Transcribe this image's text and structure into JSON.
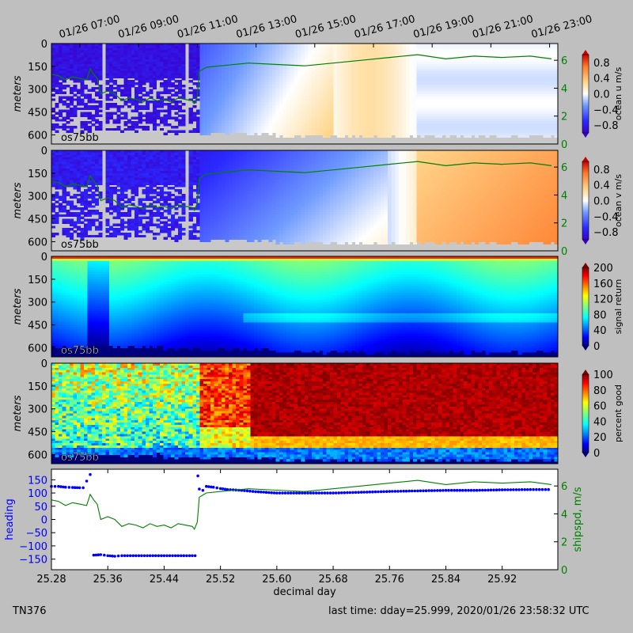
{
  "cruise": "TN376",
  "last_time": "last time: dday=25.999,  2020/01/26 23:58:32 UTC",
  "instrument": "os75bb",
  "chart_data": {
    "type": "heatmap",
    "top_time_ticks": [
      "01/26 07:00",
      "01/26 09:00",
      "01/26 11:00",
      "01/26 13:00",
      "01/26 15:00",
      "01/26 17:00",
      "01/26 19:00",
      "01/26 21:00",
      "01/26 23:00"
    ],
    "panels": [
      {
        "id": "u",
        "ylabel": "meters",
        "yticks": [
          "0",
          "150",
          "300",
          "450",
          "600"
        ],
        "colorbar_label": "ocean u m/s",
        "colorbar_ticks": [
          "0.8",
          "0.4",
          "0.0",
          "−0.4",
          "−0.8"
        ],
        "right_ticks": [
          "6",
          "4",
          "2",
          "0"
        ],
        "clim": [
          -1.0,
          1.0
        ]
      },
      {
        "id": "v",
        "ylabel": "meters",
        "yticks": [
          "0",
          "150",
          "300",
          "450",
          "600"
        ],
        "colorbar_label": "ocean v m/s",
        "colorbar_ticks": [
          "0.8",
          "0.4",
          "0.0",
          "−0.4",
          "−0.8"
        ],
        "right_ticks": [
          "6",
          "4",
          "2",
          "0"
        ],
        "clim": [
          -1.0,
          1.0
        ]
      },
      {
        "id": "amp",
        "ylabel": "meters",
        "yticks": [
          "0",
          "150",
          "300",
          "450",
          "600"
        ],
        "colorbar_label": "signal return",
        "colorbar_ticks": [
          "200",
          "160",
          "120",
          "80",
          "40",
          "0"
        ],
        "clim": [
          0,
          200
        ]
      },
      {
        "id": "pg",
        "ylabel": "meters",
        "yticks": [
          "0",
          "150",
          "300",
          "450",
          "600"
        ],
        "colorbar_label": "percent good",
        "colorbar_ticks": [
          "100",
          "80",
          "60",
          "40",
          "20",
          "0"
        ],
        "clim": [
          0,
          100
        ]
      }
    ],
    "bottom_panel": {
      "xlabel": "decimal day",
      "xticks": [
        "25.28",
        "25.36",
        "25.44",
        "25.52",
        "25.60",
        "25.68",
        "25.76",
        "25.84",
        "25.92"
      ],
      "xlim": [
        25.28,
        25.999
      ],
      "left_label": "heading",
      "left_ticks": [
        "150",
        "100",
        "50",
        "0",
        "−50",
        "−100",
        "−150"
      ],
      "ylim_heading": [
        -190,
        190
      ],
      "right_label": "shipspd, m/s",
      "right_ticks": [
        "6",
        "4",
        "2",
        "0"
      ],
      "ylim_speed": [
        0,
        7.2
      ]
    },
    "ship_speed": {
      "day": [
        25.28,
        25.29,
        25.3,
        25.31,
        25.32,
        25.33,
        25.335,
        25.34,
        25.345,
        25.35,
        25.36,
        25.37,
        25.38,
        25.39,
        25.4,
        25.41,
        25.42,
        25.43,
        25.44,
        25.45,
        25.46,
        25.47,
        25.48,
        25.483,
        25.487,
        25.49,
        25.5,
        25.52,
        25.56,
        25.6,
        25.64,
        25.68,
        25.72,
        25.76,
        25.8,
        25.84,
        25.88,
        25.92,
        25.96,
        25.99
      ],
      "speed": [
        5.0,
        4.9,
        4.6,
        4.8,
        4.7,
        4.6,
        5.4,
        5.0,
        4.7,
        3.6,
        3.8,
        3.6,
        3.1,
        3.3,
        3.2,
        3.0,
        3.3,
        3.1,
        3.2,
        3.0,
        3.3,
        3.2,
        3.1,
        2.9,
        3.4,
        5.2,
        5.5,
        5.6,
        5.8,
        5.7,
        5.6,
        5.8,
        6.0,
        6.2,
        6.4,
        6.1,
        6.3,
        6.2,
        6.3,
        6.1
      ]
    },
    "heading": {
      "day": [
        25.28,
        25.29,
        25.3,
        25.31,
        25.32,
        25.325,
        25.33,
        25.335,
        25.34,
        25.35,
        25.36,
        25.37,
        25.38,
        25.4,
        25.42,
        25.44,
        25.46,
        25.48,
        25.484,
        25.488,
        25.49,
        25.495,
        25.5,
        25.51,
        25.52,
        25.53,
        25.55,
        25.57,
        25.6,
        25.64,
        25.68,
        25.72,
        25.76,
        25.8,
        25.84,
        25.88,
        25.92,
        25.96,
        25.99
      ],
      "value": [
        125,
        125,
        122,
        121,
        120,
        120,
        145,
        170,
        -135,
        -133,
        -137,
        -139,
        -137,
        -137,
        -137,
        -137,
        -137,
        -137,
        -137,
        165,
        115,
        110,
        125,
        122,
        117,
        113,
        110,
        105,
        100,
        100,
        100,
        103,
        106,
        108,
        110,
        110,
        112,
        113,
        113
      ]
    }
  }
}
